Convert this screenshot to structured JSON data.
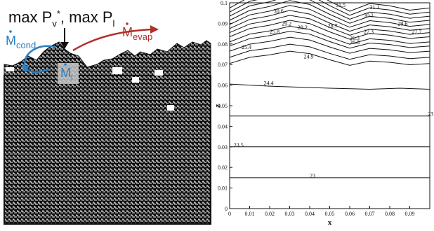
{
  "left_panel": {
    "top_label": "max P",
    "top_label_sub1": "v",
    "top_label_sup1": "*",
    "top_label_mid": ", max P",
    "top_label_sub2": "l",
    "m_cond": {
      "symbol": "M",
      "sub": "cond",
      "color": "#2a7fc1"
    },
    "m_evap": {
      "symbol": "M",
      "sub": "evap",
      "color": "#b0302a"
    },
    "m_l": {
      "symbol": "M",
      "sub": "l",
      "color": "#2a7fc1"
    },
    "arrow_down_icon": "arrow-down-icon"
  },
  "chart_data": {
    "type": "contour",
    "xlabel": "x",
    "ylabel": "z",
    "xlim": [
      0,
      0.1
    ],
    "ylim": [
      0,
      0.1
    ],
    "x_ticks": [
      "0",
      "0.01",
      "0.02",
      "0.03",
      "0.04",
      "0.05",
      "0.06",
      "0.07",
      "0.08",
      "0.09"
    ],
    "y_ticks": [
      "0",
      "0.01",
      "0.02",
      "0.03",
      "0.04",
      "0.05",
      "0.06",
      "0.07",
      "0.08",
      "0.09",
      "0.1"
    ],
    "contour_labels": [
      {
        "text": "23",
        "x": 0.04,
        "y": 0.015
      },
      {
        "text": "23.5",
        "x": 0.002,
        "y": 0.03
      },
      {
        "text": "24.4",
        "x": 0.017,
        "y": 0.06
      },
      {
        "text": "24.9",
        "x": 0.037,
        "y": 0.073
      },
      {
        "text": "25.4",
        "x": 0.006,
        "y": 0.0775
      },
      {
        "text": "25.8",
        "x": 0.02,
        "y": 0.085
      },
      {
        "text": "26.3",
        "x": 0.06,
        "y": 0.082
      },
      {
        "text": "26.8",
        "x": 0.06,
        "y": 0.08
      },
      {
        "text": "27.3",
        "x": 0.067,
        "y": 0.085
      },
      {
        "text": "27.7",
        "x": 0.091,
        "y": 0.085
      },
      {
        "text": "28.2",
        "x": 0.034,
        "y": 0.087
      },
      {
        "text": "28.7",
        "x": 0.049,
        "y": 0.088
      },
      {
        "text": "29.2",
        "x": 0.026,
        "y": 0.089
      },
      {
        "text": "29.6",
        "x": 0.084,
        "y": 0.089
      },
      {
        "text": "30.1",
        "x": 0.067,
        "y": 0.093
      },
      {
        "text": "30.6",
        "x": 0.022,
        "y": 0.095
      },
      {
        "text": "31.1",
        "x": 0.07,
        "y": 0.097
      },
      {
        "text": "31.5",
        "x": 0.053,
        "y": 0.098
      },
      {
        "text": "23",
        "x": 0.099,
        "y": 0.045
      }
    ]
  }
}
